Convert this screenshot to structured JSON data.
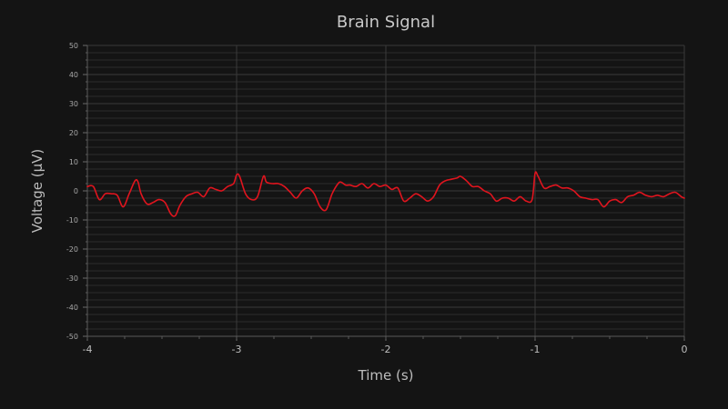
{
  "chart_data": {
    "type": "line",
    "title": "Brain Signal",
    "xlabel": "Time (s)",
    "ylabel": "Voltage (µV)",
    "xlim": [
      -4,
      0
    ],
    "ylim": [
      -50,
      50
    ],
    "xticks": [
      -4,
      -3,
      -2,
      -1,
      0
    ],
    "yticks": [
      -50,
      -40,
      -30,
      -20,
      -10,
      0,
      10,
      20,
      30,
      40,
      50
    ],
    "grid": true,
    "series": [
      {
        "color": "#e0141e",
        "x": [
          -4.0,
          -3.96,
          -3.92,
          -3.88,
          -3.84,
          -3.8,
          -3.76,
          -3.72,
          -3.68,
          -3.66,
          -3.64,
          -3.6,
          -3.56,
          -3.52,
          -3.48,
          -3.44,
          -3.41,
          -3.38,
          -3.34,
          -3.3,
          -3.26,
          -3.22,
          -3.18,
          -3.14,
          -3.1,
          -3.06,
          -3.02,
          -3.0,
          -2.98,
          -2.94,
          -2.9,
          -2.86,
          -2.82,
          -2.8,
          -2.76,
          -2.72,
          -2.68,
          -2.64,
          -2.6,
          -2.56,
          -2.52,
          -2.48,
          -2.44,
          -2.4,
          -2.36,
          -2.32,
          -2.3,
          -2.27,
          -2.24,
          -2.2,
          -2.16,
          -2.12,
          -2.08,
          -2.04,
          -2.0,
          -1.96,
          -1.92,
          -1.88,
          -1.84,
          -1.8,
          -1.76,
          -1.72,
          -1.68,
          -1.64,
          -1.6,
          -1.56,
          -1.52,
          -1.5,
          -1.46,
          -1.42,
          -1.38,
          -1.34,
          -1.3,
          -1.26,
          -1.22,
          -1.18,
          -1.14,
          -1.1,
          -1.06,
          -1.02,
          -1.0,
          -0.98,
          -0.94,
          -0.9,
          -0.86,
          -0.82,
          -0.78,
          -0.74,
          -0.7,
          -0.66,
          -0.62,
          -0.58,
          -0.54,
          -0.5,
          -0.46,
          -0.42,
          -0.38,
          -0.34,
          -0.3,
          -0.26,
          -0.22,
          -0.18,
          -0.14,
          -0.1,
          -0.06,
          -0.02,
          0.0
        ],
        "y": [
          1.5,
          1.5,
          -3.0,
          -1.0,
          -1.0,
          -1.5,
          -5.5,
          -1.0,
          3.5,
          3.0,
          -1.0,
          -4.5,
          -4.0,
          -3.0,
          -4.0,
          -8.0,
          -8.5,
          -5.0,
          -2.0,
          -1.0,
          -0.5,
          -2.0,
          1.0,
          0.5,
          0.0,
          1.5,
          2.5,
          5.5,
          5.0,
          -1.0,
          -3.0,
          -2.0,
          5.0,
          3.0,
          2.5,
          2.5,
          1.5,
          -0.5,
          -2.5,
          0.0,
          1.0,
          -1.0,
          -5.5,
          -6.5,
          -1.0,
          2.5,
          3.0,
          2.0,
          2.0,
          1.5,
          2.5,
          1.0,
          2.5,
          1.5,
          2.0,
          0.5,
          1.0,
          -3.5,
          -2.5,
          -1.0,
          -2.0,
          -3.5,
          -2.0,
          2.0,
          3.5,
          4.0,
          4.5,
          5.0,
          3.5,
          1.5,
          1.5,
          0.0,
          -1.0,
          -3.5,
          -2.5,
          -2.5,
          -3.5,
          -2.0,
          -3.5,
          -3.0,
          6.0,
          5.0,
          1.0,
          1.5,
          2.0,
          1.0,
          1.0,
          0.0,
          -2.0,
          -2.5,
          -3.0,
          -3.0,
          -5.5,
          -3.5,
          -3.0,
          -4.0,
          -2.0,
          -1.5,
          -0.5,
          -1.5,
          -2.0,
          -1.5,
          -2.0,
          -1.0,
          -0.5,
          -2.0,
          -2.5
        ]
      }
    ]
  }
}
